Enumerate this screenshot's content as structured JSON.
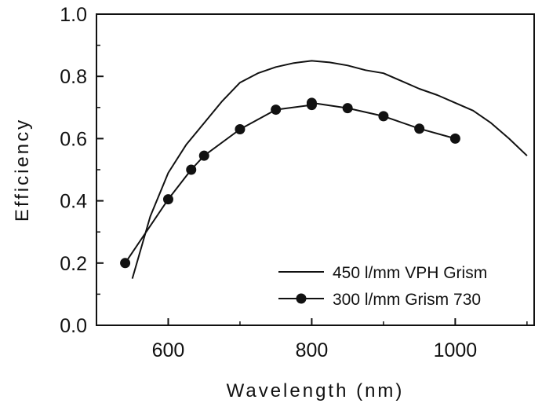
{
  "chart_data": {
    "type": "line",
    "xlabel": "Wavelength (nm)",
    "ylabel": "Efficiency",
    "xlim": [
      500,
      1110
    ],
    "ylim": [
      0.0,
      1.0
    ],
    "x_ticks": [
      "600",
      "800",
      "1000"
    ],
    "y_ticks": [
      "0.0",
      "0.2",
      "0.4",
      "0.6",
      "0.8",
      "1.0"
    ],
    "legend_placement": "lower-right",
    "grid": false,
    "series": [
      {
        "name": "450 l/mm VPH Grism",
        "style": "line",
        "x": [
          550,
          575,
          600,
          625,
          650,
          675,
          700,
          725,
          750,
          775,
          800,
          825,
          850,
          875,
          900,
          925,
          950,
          975,
          1000,
          1025,
          1050,
          1075,
          1100
        ],
        "y": [
          0.15,
          0.35,
          0.49,
          0.58,
          0.65,
          0.72,
          0.78,
          0.81,
          0.83,
          0.843,
          0.85,
          0.845,
          0.835,
          0.82,
          0.81,
          0.785,
          0.76,
          0.74,
          0.715,
          0.69,
          0.65,
          0.6,
          0.545
        ]
      },
      {
        "name": "300 l/mm Grism 730",
        "style": "line-marker",
        "x": [
          540,
          600,
          632,
          650,
          700,
          750,
          800,
          800,
          850,
          900,
          950,
          1000
        ],
        "y": [
          0.2,
          0.405,
          0.5,
          0.545,
          0.63,
          0.693,
          0.708,
          0.715,
          0.698,
          0.672,
          0.632,
          0.6
        ]
      }
    ]
  }
}
